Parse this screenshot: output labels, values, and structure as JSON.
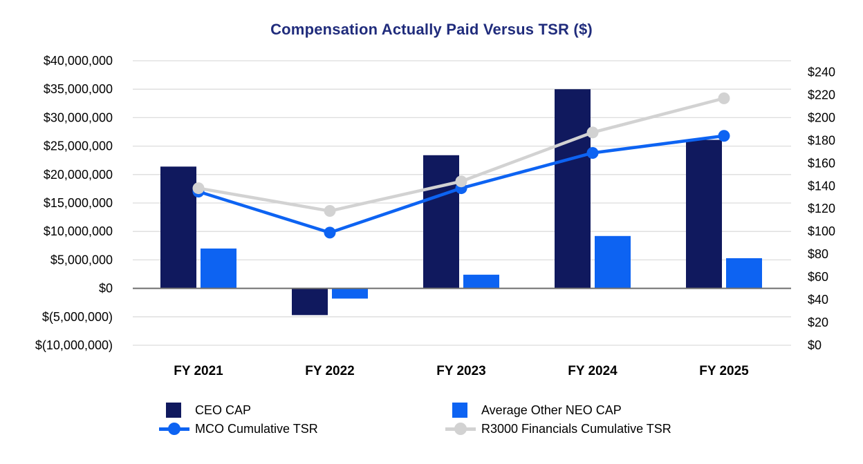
{
  "title": "Compensation Actually Paid Versus TSR ($)",
  "colors": {
    "title": "#202C7C",
    "ceo_cap": "#10195E",
    "neo_cap": "#0D63F2",
    "mco_tsr": "#0D63F2",
    "r3000_tsr": "#D2D2D2",
    "gridline": "#DCDCDC",
    "zero_axis": "#6E6E6E"
  },
  "chart_data": {
    "type": "combo",
    "title": "Compensation Actually Paid Versus TSR ($)",
    "categories": [
      "FY 2021",
      "FY 2022",
      "FY 2023",
      "FY 2024",
      "FY 2025"
    ],
    "series": [
      {
        "name": "CEO CAP",
        "type": "bar",
        "axis": "left",
        "color": "#10195E",
        "values": [
          21400000,
          -4700000,
          23400000,
          35000000,
          26100000
        ]
      },
      {
        "name": "Average Other NEO CAP",
        "type": "bar",
        "axis": "left",
        "color": "#0D63F2",
        "values": [
          7000000,
          -1800000,
          2400000,
          9200000,
          5300000
        ]
      },
      {
        "name": "MCO Cumulative TSR",
        "type": "line",
        "axis": "right",
        "color": "#0D63F2",
        "values": [
          135,
          99,
          138,
          169,
          184
        ]
      },
      {
        "name": "R3000 Financials Cumulative TSR",
        "type": "line",
        "axis": "right",
        "color": "#D2D2D2",
        "values": [
          138,
          118,
          144,
          187,
          217
        ]
      }
    ],
    "left_axis": {
      "min": -10000000,
      "max": 40000000,
      "step": 5000000,
      "ticks": [
        {
          "value": 40000000,
          "label": "$40,000,000"
        },
        {
          "value": 35000000,
          "label": "$35,000,000"
        },
        {
          "value": 30000000,
          "label": "$30,000,000"
        },
        {
          "value": 25000000,
          "label": "$25,000,000"
        },
        {
          "value": 20000000,
          "label": "$20,000,000"
        },
        {
          "value": 15000000,
          "label": "$15,000,000"
        },
        {
          "value": 10000000,
          "label": "$10,000,000"
        },
        {
          "value": 5000000,
          "label": "$5,000,000"
        },
        {
          "value": 0,
          "label": "$0"
        },
        {
          "value": -5000000,
          "label": "$(5,000,000)"
        },
        {
          "value": -10000000,
          "label": "$(10,000,000)"
        }
      ]
    },
    "right_axis": {
      "min": 0,
      "labeled_max": 240,
      "plot_max": 250,
      "step": 20,
      "ticks": [
        {
          "value": 240,
          "label": "$240"
        },
        {
          "value": 220,
          "label": "$220"
        },
        {
          "value": 200,
          "label": "$200"
        },
        {
          "value": 180,
          "label": "$180"
        },
        {
          "value": 160,
          "label": "$160"
        },
        {
          "value": 140,
          "label": "$140"
        },
        {
          "value": 120,
          "label": "$120"
        },
        {
          "value": 100,
          "label": "$100"
        },
        {
          "value": 80,
          "label": "$80"
        },
        {
          "value": 60,
          "label": "$60"
        },
        {
          "value": 40,
          "label": "$40"
        },
        {
          "value": 20,
          "label": "$20"
        },
        {
          "value": 0,
          "label": "$0"
        }
      ]
    },
    "grid": true,
    "legend_position": "bottom"
  }
}
